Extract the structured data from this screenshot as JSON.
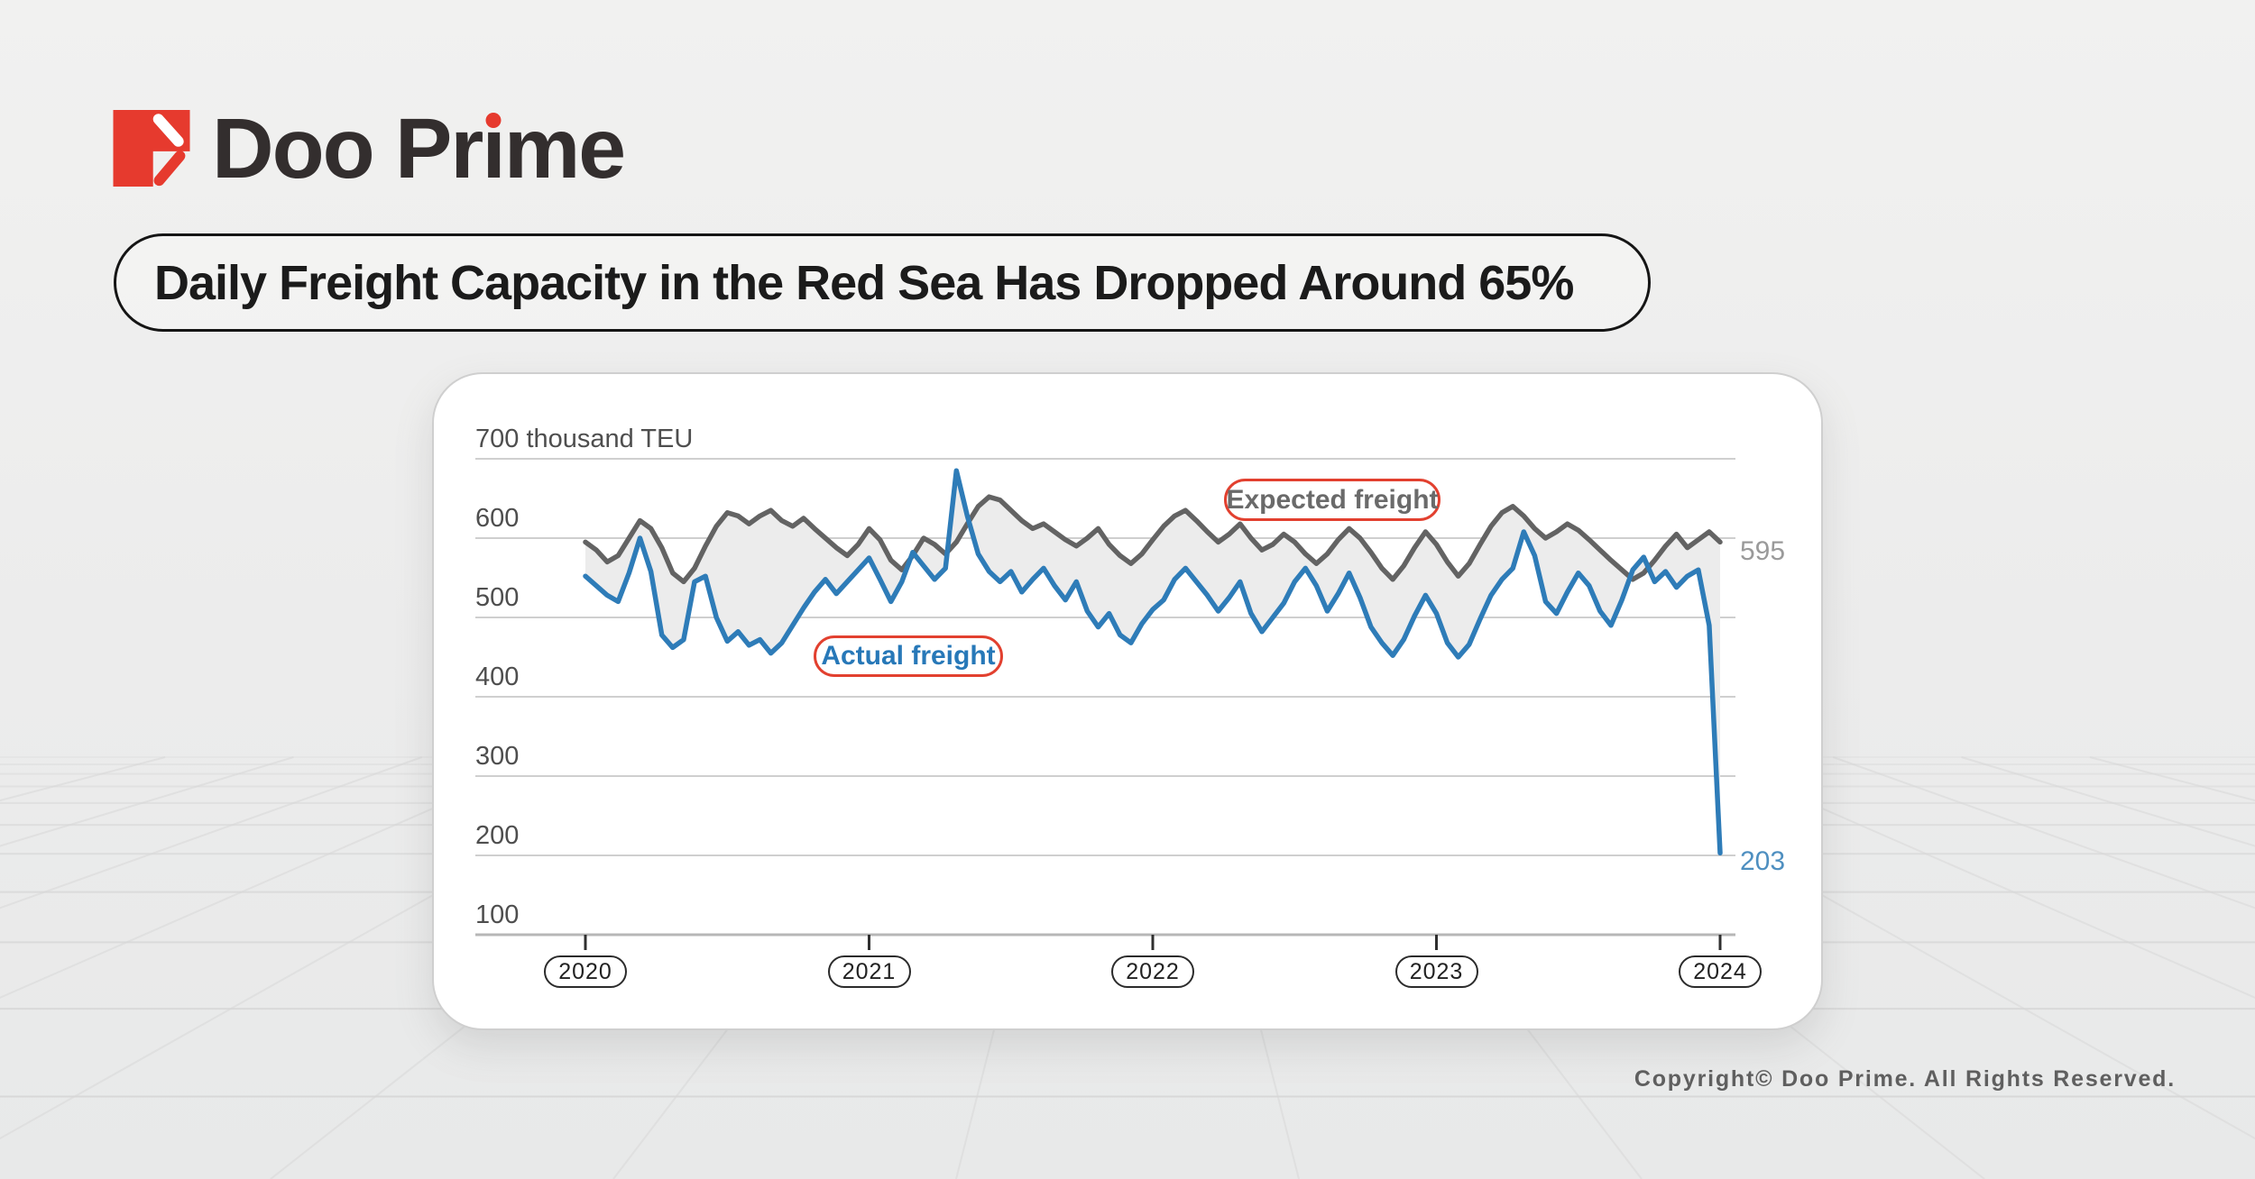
{
  "brand": {
    "name_part1": "Doo Pr",
    "i_char": "ı",
    "name_part2": "me",
    "logo_color": "#e63a2e",
    "text_color": "#332e2e"
  },
  "title": {
    "text": "Daily Freight Capacity in the Red Sea Has Dropped Around 65%"
  },
  "footer": {
    "copyright": "Copyright© Doo Prime. All Rights Reserved."
  },
  "chart_data": {
    "type": "line",
    "title": "Daily Freight Capacity in the Red Sea Has Dropped Around 65%",
    "unit": "thousand TEU",
    "y_axis": {
      "top_label": "700 thousand TEU",
      "ticks": [
        700,
        600,
        500,
        400,
        300,
        200,
        100
      ],
      "ylim": [
        100,
        700
      ]
    },
    "x_axis": {
      "ticks": [
        "2020",
        "2021",
        "2022",
        "2023",
        "2024"
      ],
      "range": [
        2020,
        2024
      ]
    },
    "points_per_year": 26,
    "grid_color": "#cfcfcf",
    "band_fill": "#ececec",
    "legend_outline_color": "#e2402f",
    "series": [
      {
        "name": "Expected freight",
        "color": "#636363",
        "label_color": "#6a6a6a",
        "end_label": "595",
        "end_label_color": "#9a9a9a",
        "values": [
          595,
          585,
          570,
          578,
          600,
          622,
          612,
          588,
          556,
          545,
          562,
          590,
          615,
          632,
          628,
          618,
          628,
          635,
          622,
          615,
          625,
          612,
          600,
          588,
          578,
          592,
          612,
          598,
          572,
          560,
          578,
          600,
          592,
          580,
          595,
          618,
          640,
          652,
          648,
          635,
          622,
          612,
          618,
          608,
          598,
          590,
          600,
          612,
          592,
          578,
          568,
          580,
          598,
          615,
          628,
          635,
          622,
          608,
          595,
          605,
          618,
          600,
          585,
          592,
          605,
          595,
          580,
          568,
          580,
          598,
          612,
          600,
          582,
          562,
          548,
          565,
          588,
          608,
          592,
          570,
          552,
          568,
          592,
          615,
          632,
          640,
          628,
          612,
          600,
          608,
          618,
          610,
          598,
          585,
          572,
          560,
          548,
          556,
          572,
          590,
          605,
          588,
          598,
          608,
          595
        ]
      },
      {
        "name": "Actual freight",
        "color": "#2e7cb8",
        "label_color": "#2778b8",
        "end_label": "203",
        "end_label_color": "#4e8fc0",
        "values": [
          552,
          540,
          528,
          520,
          556,
          600,
          558,
          478,
          462,
          472,
          545,
          552,
          500,
          470,
          482,
          465,
          472,
          455,
          468,
          490,
          512,
          532,
          548,
          530,
          545,
          560,
          575,
          548,
          520,
          545,
          582,
          565,
          548,
          562,
          685,
          628,
          580,
          558,
          545,
          558,
          532,
          548,
          562,
          540,
          522,
          545,
          508,
          488,
          505,
          478,
          468,
          492,
          510,
          522,
          548,
          562,
          545,
          528,
          508,
          525,
          545,
          505,
          482,
          500,
          518,
          545,
          562,
          540,
          508,
          530,
          556,
          525,
          488,
          468,
          452,
          472,
          502,
          528,
          505,
          468,
          450,
          466,
          498,
          528,
          548,
          562,
          608,
          578,
          520,
          505,
          532,
          556,
          540,
          508,
          490,
          522,
          560,
          576,
          545,
          558,
          538,
          552,
          560,
          490,
          203
        ]
      }
    ]
  }
}
